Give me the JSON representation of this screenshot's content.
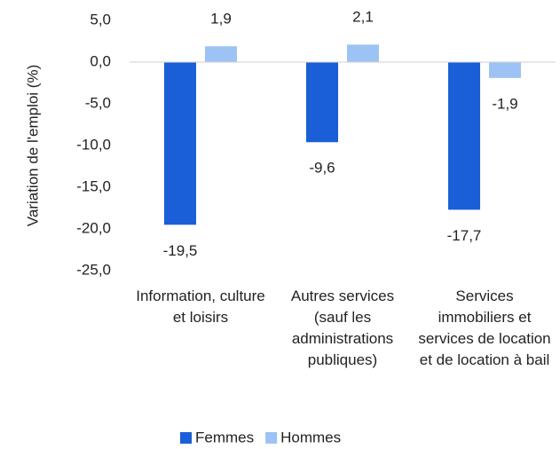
{
  "chart_data": {
    "type": "bar",
    "y_axis_label": "Variation de l'emploi (%)",
    "categories": [
      "Information, culture et loisirs",
      "Autres services (sauf les administrations publiques)",
      "Services immobiliers et services de location et de location à bail"
    ],
    "series": [
      {
        "name": "Femmes",
        "color": "#1a5fd8",
        "values": [
          -19.5,
          -9.6,
          -17.7
        ],
        "value_labels": [
          "-19,5",
          "-9,6",
          "-17,7"
        ]
      },
      {
        "name": "Hommes",
        "color": "#9dc3f5",
        "values": [
          1.9,
          2.1,
          -1.9
        ],
        "value_labels": [
          "1,9",
          "2,1",
          "-1,9"
        ]
      }
    ],
    "ylim": [
      -25,
      5
    ],
    "yticks": [
      {
        "value": 5,
        "label": "5,0"
      },
      {
        "value": 0,
        "label": "0,0"
      },
      {
        "value": -5,
        "label": "-5,0"
      },
      {
        "value": -10,
        "label": "-10,0"
      },
      {
        "value": -15,
        "label": "-15,0"
      },
      {
        "value": -20,
        "label": "-20,0"
      },
      {
        "value": -25,
        "label": "-25,0"
      }
    ],
    "grid": false,
    "legend": "bottom"
  }
}
